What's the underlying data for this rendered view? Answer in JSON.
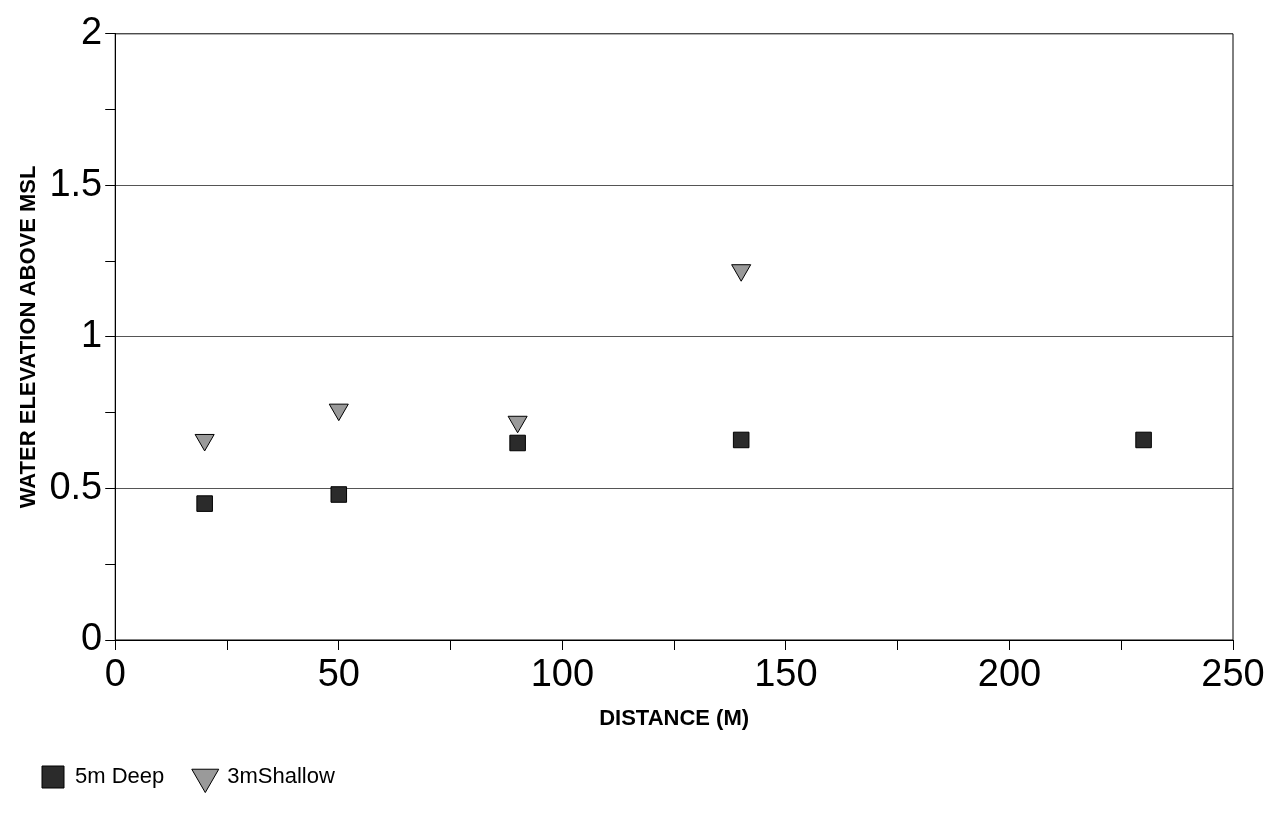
{
  "chart_data": {
    "type": "scatter",
    "xlabel": "DISTANCE (M)",
    "ylabel": "WATER ELEVATION ABOVE MSL",
    "xlim": [
      0,
      250
    ],
    "xticks": [
      0,
      {
        "value": 25,
        "label": null
      },
      50,
      {
        "value": 75,
        "label": null
      },
      100,
      {
        "value": 125,
        "label": null
      },
      150,
      {
        "value": 175,
        "label": null
      },
      200,
      {
        "value": 225,
        "label": null
      },
      250
    ],
    "ylim": [
      0,
      2
    ],
    "yticks": [
      0,
      {
        "value": 0.25,
        "label": null
      },
      0.5,
      {
        "value": 0.75,
        "label": null
      },
      1,
      {
        "value": 1.25,
        "label": null
      },
      1.5,
      {
        "value": 1.75,
        "label": null
      },
      2
    ],
    "grid": "y",
    "legend": "bottom left",
    "series": [
      {
        "name": "5m Deep",
        "color": "#2b2b2b",
        "marker": "square",
        "x": [
          20,
          50,
          90,
          140,
          230
        ],
        "values": [
          0.45,
          0.48,
          0.65,
          0.66,
          0.66
        ]
      },
      {
        "name": "3mShallow",
        "color": "#9a9a9a",
        "marker": "triangle",
        "x": [
          20,
          50,
          90,
          140
        ],
        "values": [
          0.66,
          0.76,
          0.72,
          1.22
        ]
      }
    ]
  }
}
